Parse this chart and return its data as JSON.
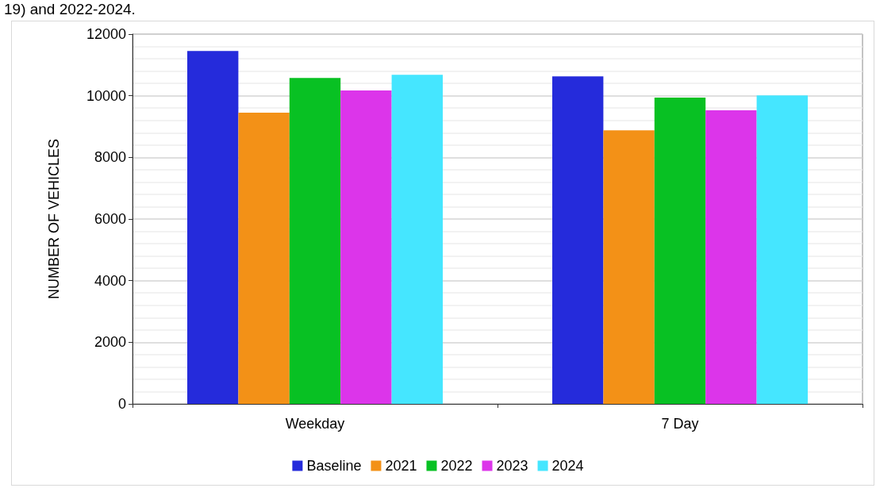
{
  "chart_data": {
    "type": "bar",
    "title": "19) and 2022-2024.",
    "ylabel": "NUMBER OF VEHICLES",
    "categories": [
      "Weekday",
      "7 Day"
    ],
    "series": [
      {
        "name": "Baseline",
        "color": "#252bdb",
        "values": [
          11450,
          10630
        ]
      },
      {
        "name": "2021",
        "color": "#f39117",
        "values": [
          9450,
          8880
        ]
      },
      {
        "name": "2022",
        "color": "#08c123",
        "values": [
          10580,
          9940
        ]
      },
      {
        "name": "2023",
        "color": "#dc35ea",
        "values": [
          10170,
          9530
        ]
      },
      {
        "name": "2024",
        "color": "#45e6ff",
        "values": [
          10680,
          10010
        ]
      }
    ],
    "ylim": [
      0,
      12000
    ],
    "yticks": [
      0,
      2000,
      4000,
      6000,
      8000,
      10000,
      12000
    ],
    "grid": "y",
    "legend": "bottom"
  }
}
